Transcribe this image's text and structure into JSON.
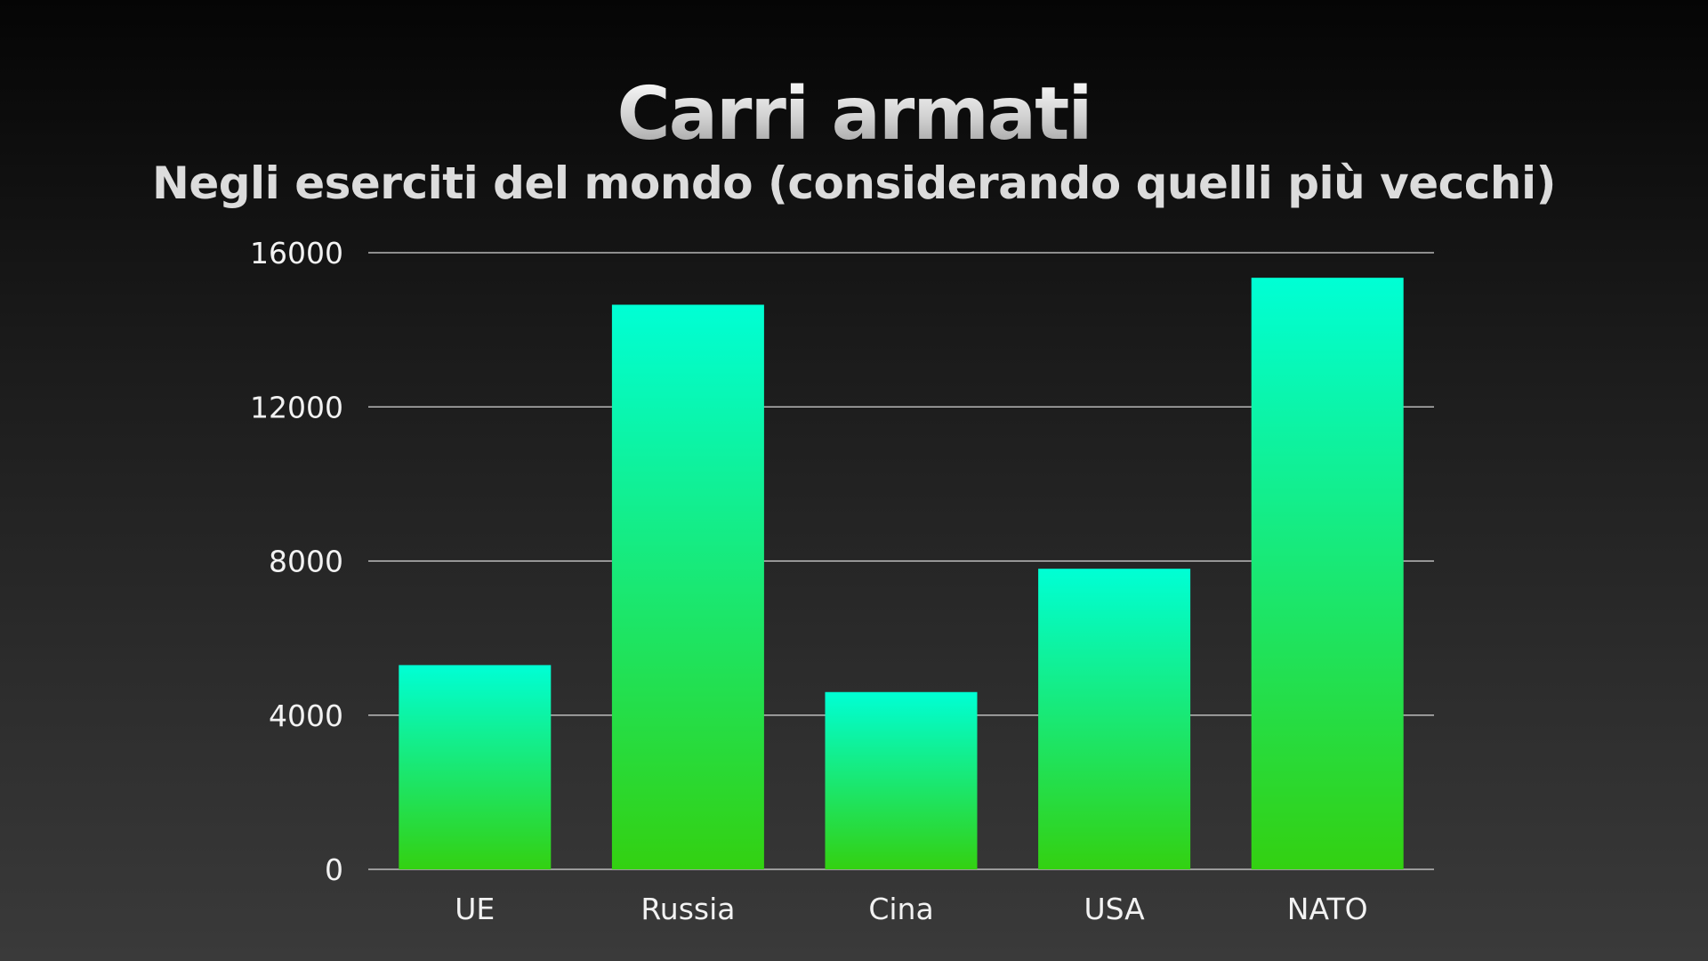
{
  "chart_data": {
    "type": "bar",
    "title": "Carri armati",
    "subtitle": "Negli eserciti del mondo (considerando quelli più vecchi)",
    "categories": [
      "UE",
      "Russia",
      "Cina",
      "USA",
      "NATO"
    ],
    "values": [
      5300,
      14650,
      4600,
      7800,
      15350
    ],
    "ylim": [
      0,
      16000
    ],
    "yticks": [
      0,
      4000,
      8000,
      12000,
      16000
    ],
    "grid": true,
    "legend": "none",
    "xlabel": "",
    "ylabel": ""
  },
  "colors": {
    "bar_top": "#00ffd5",
    "bar_bottom": "#33d111",
    "gridline": "#d8d8d8",
    "text": "#f2f2f2"
  }
}
